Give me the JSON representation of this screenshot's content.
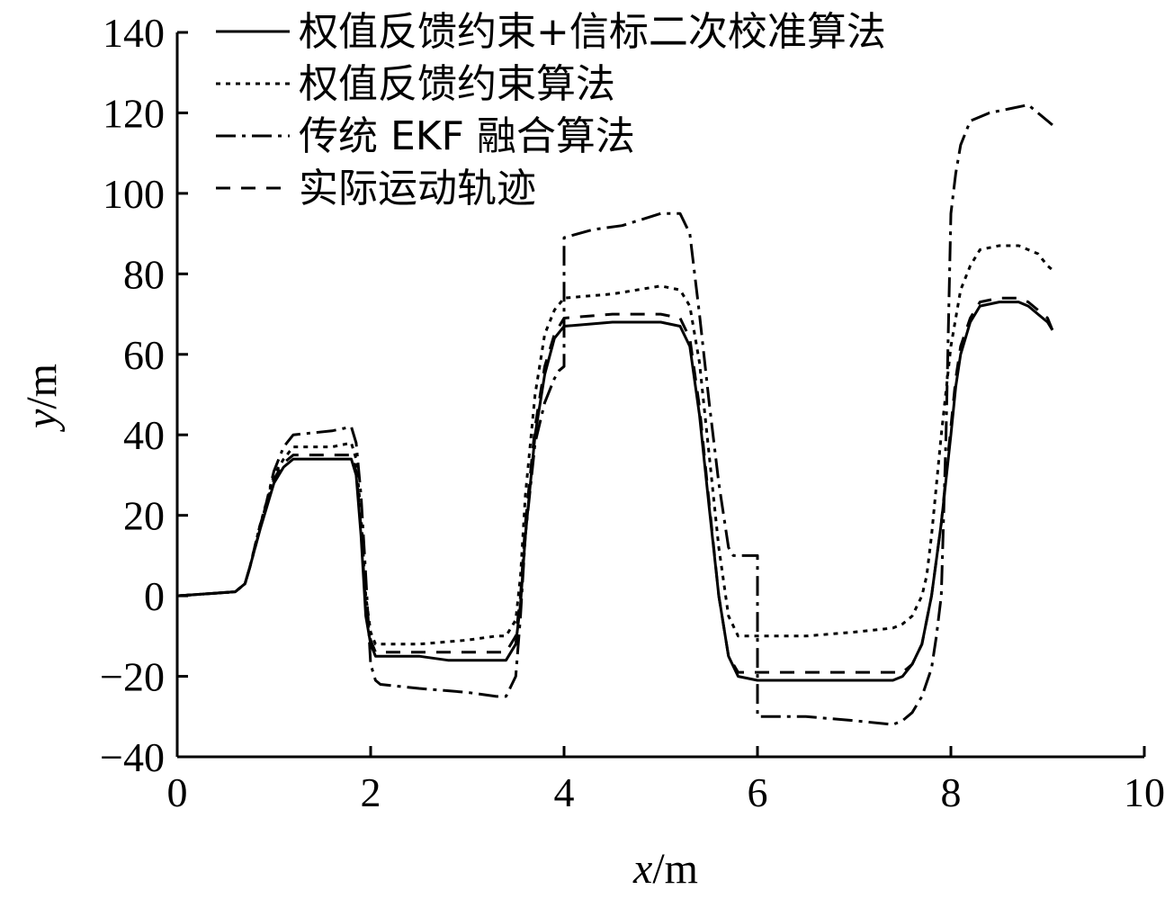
{
  "chart_data": {
    "type": "line",
    "title": "",
    "xlabel": {
      "var": "x",
      "unit": "/m"
    },
    "ylabel": {
      "var": "y",
      "unit": "/m"
    },
    "xlim": [
      0,
      10
    ],
    "ylim": [
      -40,
      140
    ],
    "xticks": [
      "0",
      "2",
      "4",
      "6",
      "8",
      "10"
    ],
    "yticks": [
      "−40",
      "−20",
      "0",
      "20",
      "40",
      "60",
      "80",
      "100",
      "120",
      "140"
    ],
    "grid": false,
    "legend_position": "top-left",
    "series": [
      {
        "name": "权值反馈约束+信标二次校准算法",
        "style": "solid",
        "color": "#000000",
        "x": [
          0,
          0.3,
          0.6,
          0.7,
          0.75,
          0.85,
          1.0,
          1.1,
          1.2,
          1.6,
          1.8,
          1.85,
          1.9,
          1.95,
          2.0,
          2.05,
          2.1,
          2.5,
          2.8,
          3.0,
          3.2,
          3.4,
          3.5,
          3.55,
          3.6,
          3.7,
          3.8,
          3.9,
          4.0,
          4.5,
          5.0,
          5.2,
          5.3,
          5.4,
          5.5,
          5.6,
          5.7,
          5.8,
          6.0,
          6.5,
          7.0,
          7.4,
          7.5,
          7.6,
          7.7,
          7.8,
          7.9,
          8.0,
          8.05,
          8.1,
          8.2,
          8.3,
          8.5,
          8.7,
          8.8,
          8.9,
          9.0,
          9.05
        ],
        "y": [
          0,
          0.5,
          1,
          3,
          7,
          16,
          28,
          32,
          34,
          34,
          34,
          30,
          15,
          -5,
          -12,
          -15,
          -15,
          -15,
          -16,
          -16,
          -16,
          -16,
          -12,
          -2,
          15,
          40,
          55,
          64,
          67,
          68,
          68,
          67,
          62,
          45,
          22,
          0,
          -15,
          -20,
          -21,
          -21,
          -21,
          -21,
          -20,
          -17,
          -12,
          0,
          18,
          40,
          52,
          60,
          68,
          72,
          73,
          73,
          72,
          70,
          68,
          66
        ]
      },
      {
        "name": "权值反馈约束算法",
        "style": "dotted",
        "color": "#000000",
        "x": [
          0,
          0.3,
          0.6,
          0.7,
          0.75,
          0.85,
          1.0,
          1.1,
          1.2,
          1.6,
          1.8,
          1.85,
          1.9,
          1.95,
          2.0,
          2.05,
          2.1,
          2.5,
          3.0,
          3.3,
          3.4,
          3.5,
          3.55,
          3.6,
          3.7,
          3.8,
          3.9,
          4.0,
          4.5,
          5.0,
          5.2,
          5.3,
          5.4,
          5.5,
          5.6,
          5.7,
          5.8,
          6.0,
          6.5,
          7.0,
          7.4,
          7.5,
          7.6,
          7.7,
          7.75,
          7.8,
          7.9,
          8.0,
          8.1,
          8.2,
          8.3,
          8.5,
          8.7,
          8.8,
          8.9,
          9.0,
          9.05
        ],
        "y": [
          0,
          0.5,
          1,
          3,
          7,
          17,
          30,
          34,
          37,
          37,
          38,
          34,
          20,
          0,
          -9,
          -12,
          -12,
          -12,
          -11,
          -10,
          -10,
          -6,
          5,
          25,
          50,
          65,
          71,
          74,
          75,
          77,
          76,
          72,
          58,
          35,
          12,
          -5,
          -10,
          -10,
          -10,
          -9,
          -8,
          -7,
          -5,
          0,
          5,
          15,
          40,
          62,
          76,
          82,
          86,
          87,
          87,
          86,
          85,
          82,
          81
        ]
      },
      {
        "name": "传统 EKF 融合算法",
        "style": "dashdot",
        "color": "#000000",
        "x": [
          0,
          0.3,
          0.6,
          0.7,
          0.75,
          0.85,
          1.0,
          1.1,
          1.2,
          1.6,
          1.8,
          1.85,
          1.9,
          1.95,
          2.0,
          2.05,
          2.1,
          2.5,
          3.0,
          3.3,
          3.4,
          3.5,
          3.55,
          3.6,
          3.7,
          3.8,
          3.9,
          3.95,
          4.0,
          4.0,
          4.3,
          4.6,
          5.0,
          5.2,
          5.3,
          5.4,
          5.5,
          5.6,
          5.7,
          5.75,
          5.8,
          5.9,
          6.0,
          6.0,
          6.5,
          7.0,
          7.4,
          7.5,
          7.6,
          7.7,
          7.8,
          7.85,
          7.9,
          7.95,
          8.0,
          8.05,
          8.1,
          8.2,
          8.4,
          8.6,
          8.8,
          9.0,
          9.05
        ],
        "y": [
          0,
          0.5,
          1,
          3,
          7,
          16,
          31,
          37,
          40,
          41,
          42,
          38,
          25,
          5,
          -17,
          -21,
          -22,
          -23,
          -24,
          -25,
          -25,
          -20,
          -5,
          15,
          38,
          48,
          54,
          56,
          57,
          89,
          91,
          92,
          95,
          95,
          90,
          70,
          48,
          28,
          12,
          10,
          10,
          10,
          10,
          -30,
          -30,
          -31,
          -32,
          -31,
          -29,
          -25,
          -18,
          -10,
          0,
          40,
          95,
          105,
          112,
          118,
          120,
          121,
          122,
          118,
          117
        ]
      },
      {
        "name": "实际运动轨迹",
        "style": "dashed",
        "color": "#000000",
        "x": [
          0,
          0.3,
          0.6,
          0.7,
          0.75,
          0.85,
          1.0,
          1.1,
          1.2,
          1.6,
          1.8,
          1.85,
          1.9,
          1.95,
          2.0,
          2.05,
          2.1,
          2.5,
          3.0,
          3.4,
          3.5,
          3.55,
          3.6,
          3.7,
          3.8,
          3.9,
          4.0,
          4.5,
          5.0,
          5.2,
          5.3,
          5.4,
          5.5,
          5.6,
          5.7,
          5.8,
          6.0,
          6.5,
          7.0,
          7.5,
          7.6,
          7.7,
          7.8,
          7.9,
          8.0,
          8.05,
          8.1,
          8.2,
          8.3,
          8.5,
          8.7,
          8.8,
          8.9,
          9.0,
          9.05
        ],
        "y": [
          0,
          0.5,
          1,
          3,
          7,
          17,
          29,
          33,
          35,
          35,
          35,
          31,
          17,
          -3,
          -11,
          -14,
          -14,
          -14,
          -14,
          -14,
          -10,
          0,
          18,
          42,
          57,
          65,
          69,
          70,
          70,
          69,
          64,
          47,
          23,
          0,
          -15,
          -19,
          -19,
          -19,
          -19,
          -19,
          -17,
          -12,
          0,
          18,
          42,
          54,
          62,
          69,
          73,
          74,
          74,
          73,
          71,
          69,
          66
        ]
      }
    ]
  }
}
